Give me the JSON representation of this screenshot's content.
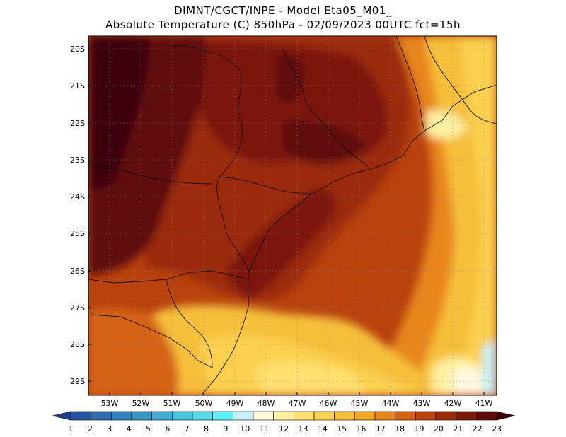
{
  "title_line1": "DIMNT/CGCT/INPE  -  Model Eta05_M01_",
  "title_line2": "Absolute Temperature (C) 850hPa  -  02/09/2023 00UTC fct=15h",
  "map": {
    "lon_labels": [
      "53W",
      "52W",
      "51W",
      "50W",
      "49W",
      "48W",
      "47W",
      "46W",
      "45W",
      "44W",
      "43W",
      "42W",
      "41W"
    ],
    "lat_labels": [
      "20S",
      "21S",
      "22S",
      "23S",
      "24S",
      "25S",
      "26S",
      "27S",
      "28S",
      "29S"
    ]
  },
  "colorbar": {
    "labels": [
      "1",
      "2",
      "3",
      "4",
      "5",
      "6",
      "7",
      "8",
      "9",
      "10",
      "11",
      "12",
      "13",
      "14",
      "15",
      "16",
      "17",
      "18",
      "19",
      "20",
      "21",
      "22",
      "23"
    ],
    "colors": [
      "#1e3c8c",
      "#2855a0",
      "#2f6cb0",
      "#3581bd",
      "#3b96c8",
      "#41abd2",
      "#4ac4dd",
      "#54dbe9",
      "#5ef2f5",
      "#c8f0f8",
      "#fff8e0",
      "#fff0a0",
      "#ffe070",
      "#fbd050",
      "#f6bf3a",
      "#f2a724",
      "#e8861a",
      "#d56312",
      "#b9420d",
      "#9b2b0a",
      "#7c1909",
      "#5e0d0a",
      "#3e0508"
    ]
  }
}
